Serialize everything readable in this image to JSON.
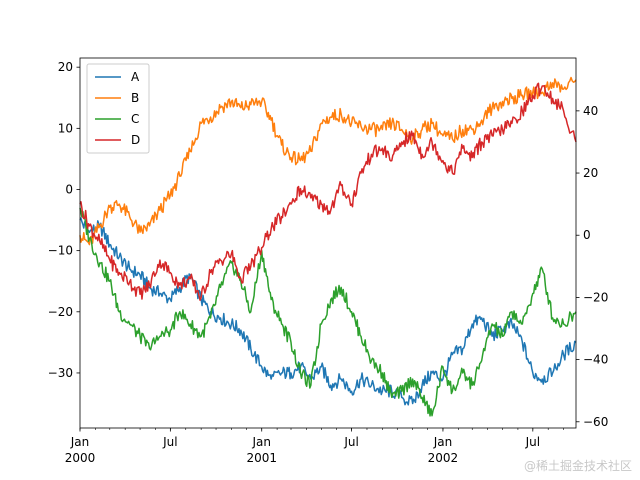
{
  "chart_data": {
    "type": "line",
    "title": "",
    "xlabel": "",
    "ylabel": "",
    "grid": false,
    "legend_position": "top-left",
    "x_ticks": [
      {
        "date": "2000-01-01",
        "line1": "Jan",
        "line2": "2000"
      },
      {
        "date": "2000-07-01",
        "line1": "Jul",
        "line2": ""
      },
      {
        "date": "2001-01-01",
        "line1": "Jan",
        "line2": "2001"
      },
      {
        "date": "2001-07-01",
        "line1": "Jul",
        "line2": ""
      },
      {
        "date": "2002-01-01",
        "line1": "Jan",
        "line2": "2002"
      },
      {
        "date": "2002-07-01",
        "line1": "Jul",
        "line2": ""
      }
    ],
    "xlim": [
      "2000-01-01",
      "2002-09-26"
    ],
    "y_left": {
      "ylim": [
        -39,
        21.5
      ],
      "ticks": [
        "20",
        "10",
        "0",
        "−10",
        "−20",
        "−30"
      ],
      "tick_values": [
        20,
        10,
        0,
        -10,
        -20,
        -30
      ]
    },
    "y_right": {
      "ylim": [
        -62,
        57
      ],
      "ticks": [
        "40",
        "20",
        "0",
        "−20",
        "−40",
        "−60"
      ],
      "tick_values": [
        40,
        20,
        0,
        -20,
        -40,
        -60
      ]
    },
    "series": [
      {
        "name": "A",
        "color": "#1f77b4",
        "axis": "left",
        "x": [
          "2000-01-01",
          "2000-01-20",
          "2000-02-10",
          "2000-03-01",
          "2000-03-20",
          "2000-04-10",
          "2000-05-01",
          "2000-05-20",
          "2000-06-10",
          "2000-07-01",
          "2000-07-20",
          "2000-08-10",
          "2000-09-01",
          "2000-09-20",
          "2000-10-10",
          "2000-11-01",
          "2000-11-20",
          "2000-12-10",
          "2001-01-01",
          "2001-01-20",
          "2001-02-10",
          "2001-03-01",
          "2001-03-20",
          "2001-04-10",
          "2001-05-01",
          "2001-05-20",
          "2001-06-10",
          "2001-07-01",
          "2001-07-20",
          "2001-08-10",
          "2001-09-01",
          "2001-09-20",
          "2001-10-10",
          "2001-11-01",
          "2001-11-20",
          "2001-12-10",
          "2002-01-01",
          "2002-01-20",
          "2002-02-10",
          "2002-03-01",
          "2002-03-20",
          "2002-04-10",
          "2002-05-01",
          "2002-05-20",
          "2002-06-10",
          "2002-07-01",
          "2002-07-20",
          "2002-08-10",
          "2002-09-01",
          "2002-09-26"
        ],
        "values": [
          -5,
          -7,
          -6,
          -9,
          -11,
          -13,
          -14,
          -16,
          -17,
          -18,
          -16,
          -14,
          -18,
          -20,
          -21,
          -22,
          -23,
          -26,
          -29,
          -31,
          -30,
          -30,
          -29,
          -31,
          -29,
          -32,
          -31,
          -33,
          -31,
          -32,
          -33,
          -33,
          -34,
          -35,
          -32,
          -30,
          -31,
          -27,
          -26,
          -22,
          -21,
          -24,
          -23,
          -22,
          -25,
          -30,
          -31,
          -30,
          -27,
          -25
        ]
      },
      {
        "name": "B",
        "color": "#ff7f0e",
        "axis": "right",
        "x": [
          "2000-01-01",
          "2000-01-20",
          "2000-02-10",
          "2000-03-01",
          "2000-03-20",
          "2000-04-10",
          "2000-05-01",
          "2000-05-20",
          "2000-06-10",
          "2000-07-01",
          "2000-07-20",
          "2000-08-10",
          "2000-09-01",
          "2000-09-20",
          "2000-10-10",
          "2000-11-01",
          "2000-11-20",
          "2000-12-10",
          "2001-01-01",
          "2001-01-20",
          "2001-02-10",
          "2001-03-01",
          "2001-03-20",
          "2001-04-10",
          "2001-05-01",
          "2001-05-20",
          "2001-06-10",
          "2001-07-01",
          "2001-07-20",
          "2001-08-10",
          "2001-09-01",
          "2001-09-20",
          "2001-10-10",
          "2001-11-01",
          "2001-11-20",
          "2001-12-10",
          "2002-01-01",
          "2002-01-20",
          "2002-02-10",
          "2002-03-01",
          "2002-03-20",
          "2002-04-10",
          "2002-05-01",
          "2002-05-20",
          "2002-06-10",
          "2002-07-01",
          "2002-07-20",
          "2002-08-10",
          "2002-09-01",
          "2002-09-26"
        ],
        "values": [
          0,
          -3,
          3,
          9,
          10,
          6,
          1,
          3,
          8,
          13,
          19,
          27,
          36,
          38,
          41,
          43,
          41,
          42,
          43,
          37,
          29,
          25,
          24,
          27,
          36,
          38,
          39,
          36,
          35,
          34,
          34,
          36,
          34,
          31,
          34,
          36,
          32,
          31,
          34,
          34,
          37,
          41,
          43,
          44,
          45,
          46,
          46,
          49,
          47,
          50
        ]
      },
      {
        "name": "C",
        "color": "#2ca02c",
        "axis": "left",
        "x": [
          "2000-01-01",
          "2000-01-20",
          "2000-02-10",
          "2000-03-01",
          "2000-03-20",
          "2000-04-10",
          "2000-05-01",
          "2000-05-20",
          "2000-06-10",
          "2000-07-01",
          "2000-07-20",
          "2000-08-10",
          "2000-09-01",
          "2000-09-20",
          "2000-10-10",
          "2000-11-01",
          "2000-11-20",
          "2000-12-10",
          "2001-01-01",
          "2001-01-20",
          "2001-02-10",
          "2001-03-01",
          "2001-03-20",
          "2001-04-10",
          "2001-05-01",
          "2001-05-20",
          "2001-06-10",
          "2001-07-01",
          "2001-07-20",
          "2001-08-10",
          "2001-09-01",
          "2001-09-20",
          "2001-10-10",
          "2001-11-01",
          "2001-11-20",
          "2001-12-10",
          "2002-01-01",
          "2002-01-20",
          "2002-02-10",
          "2002-03-01",
          "2002-03-20",
          "2002-04-10",
          "2002-05-01",
          "2002-05-20",
          "2002-06-10",
          "2002-07-01",
          "2002-07-20",
          "2002-08-10",
          "2002-09-01",
          "2002-09-26"
        ],
        "values": [
          -3,
          -8,
          -12,
          -15,
          -20,
          -22,
          -24,
          -26,
          -24,
          -23,
          -20,
          -22,
          -24,
          -21,
          -16,
          -12,
          -15,
          -20,
          -10,
          -18,
          -22,
          -25,
          -30,
          -32,
          -22,
          -18,
          -16,
          -20,
          -24,
          -28,
          -30,
          -34,
          -33,
          -31,
          -34,
          -37,
          -29,
          -33,
          -30,
          -32,
          -28,
          -22,
          -24,
          -20,
          -22,
          -17,
          -13,
          -21,
          -22,
          -20
        ]
      },
      {
        "name": "D",
        "color": "#d62728",
        "axis": "right",
        "x": [
          "2000-01-01",
          "2000-01-20",
          "2000-02-10",
          "2000-03-01",
          "2000-03-20",
          "2000-04-10",
          "2000-05-01",
          "2000-05-20",
          "2000-06-10",
          "2000-07-01",
          "2000-07-20",
          "2000-08-10",
          "2000-09-01",
          "2000-09-20",
          "2000-10-10",
          "2000-11-01",
          "2000-11-20",
          "2000-12-10",
          "2001-01-01",
          "2001-01-20",
          "2001-02-10",
          "2001-03-01",
          "2001-03-20",
          "2001-04-10",
          "2001-05-01",
          "2001-05-20",
          "2001-06-10",
          "2001-07-01",
          "2001-07-20",
          "2001-08-10",
          "2001-09-01",
          "2001-09-20",
          "2001-10-10",
          "2001-11-01",
          "2001-11-20",
          "2001-12-10",
          "2002-01-01",
          "2002-01-20",
          "2002-02-10",
          "2002-03-01",
          "2002-03-20",
          "2002-04-10",
          "2002-05-01",
          "2002-05-20",
          "2002-06-10",
          "2002-07-01",
          "2002-07-20",
          "2002-08-10",
          "2002-09-01",
          "2002-09-26"
        ],
        "values": [
          10,
          3,
          -2,
          -8,
          -12,
          -15,
          -19,
          -16,
          -8,
          -12,
          -16,
          -14,
          -20,
          -12,
          -8,
          -6,
          -14,
          -10,
          -4,
          2,
          6,
          10,
          15,
          12,
          10,
          8,
          16,
          10,
          20,
          26,
          28,
          24,
          30,
          32,
          26,
          30,
          24,
          20,
          28,
          25,
          30,
          32,
          34,
          36,
          40,
          45,
          48,
          44,
          40,
          30
        ]
      }
    ]
  },
  "watermark": "@稀土掘金技术社区"
}
